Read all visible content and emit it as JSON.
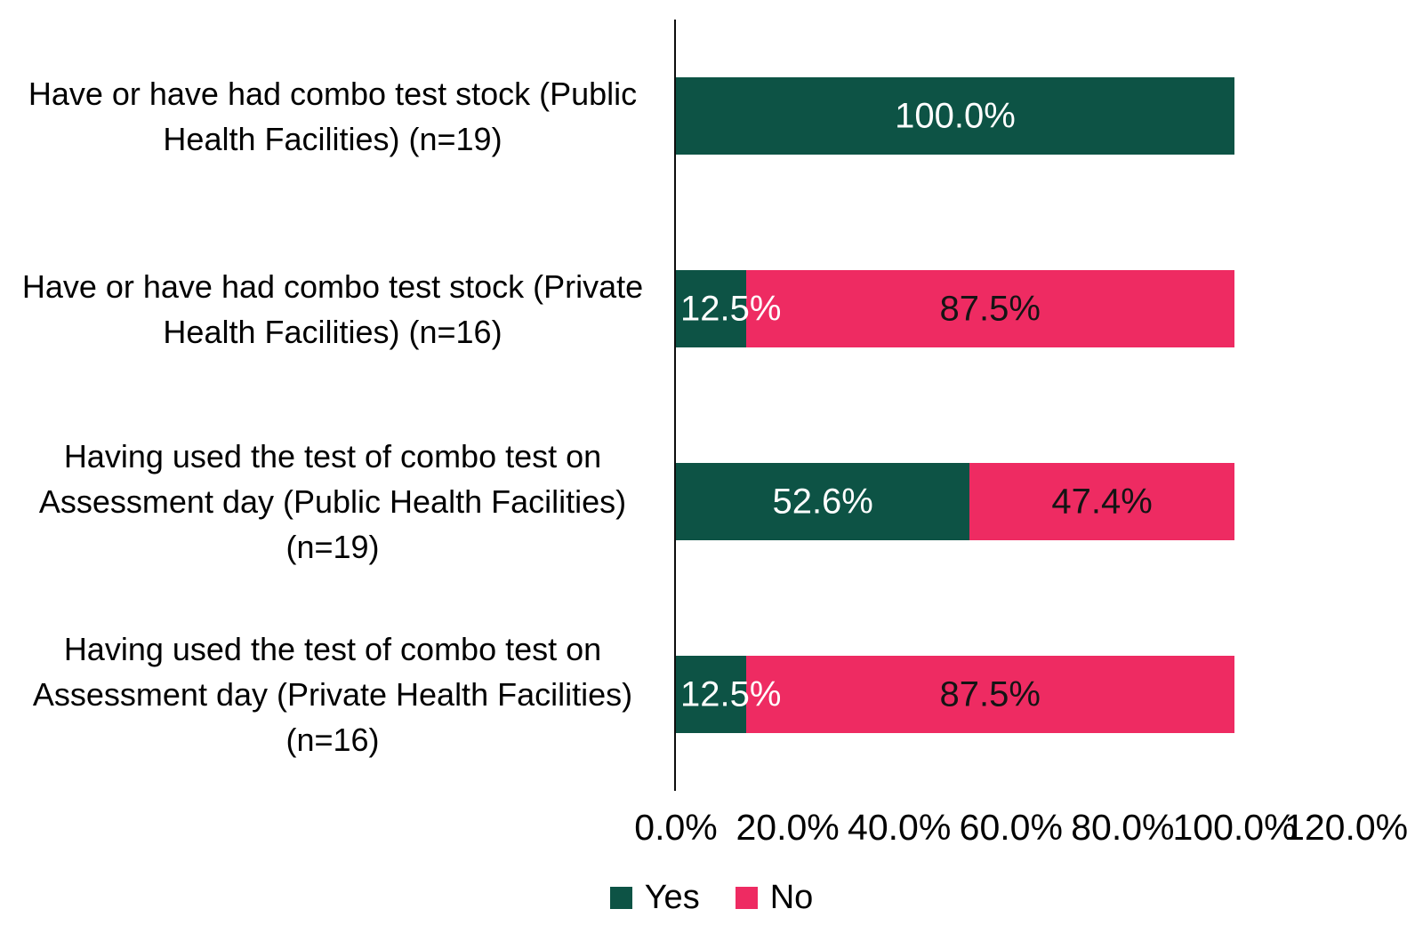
{
  "chart_data": {
    "type": "bar",
    "orientation": "horizontal",
    "stacked": true,
    "title": "",
    "grid": false,
    "legend_position": "bottom",
    "xlim": [
      0,
      120
    ],
    "x_ticks": [
      "0.0%",
      "20.0%",
      "40.0%",
      "60.0%",
      "80.0%",
      "100.0%",
      "120.0%"
    ],
    "categories": [
      "Have or have had combo test stock (Public Health Facilities) (n=19)",
      "Have or have had combo test stock (Private Health Facilities) (n=16)",
      "Having used the test of  combo test on Assessment day (Public Health Facilities) (n=19)",
      "Having used the test of  combo test on Assessment day (Private Health Facilities) (n=16)"
    ],
    "series": [
      {
        "name": "Yes",
        "color": "#0d5345",
        "label_color": "#ffffff",
        "values": [
          100.0,
          12.5,
          52.6,
          12.5
        ],
        "data_labels": [
          "100.0%",
          "12.5%",
          "52.6%",
          "12.5%"
        ]
      },
      {
        "name": "No",
        "color": "#ee2b62",
        "label_color": "#141414",
        "values": [
          0,
          87.5,
          47.4,
          87.5
        ],
        "data_labels": [
          "",
          "87.5%",
          "47.4%",
          "87.5%"
        ]
      }
    ],
    "axis_line_color": "#0d0d0d"
  }
}
